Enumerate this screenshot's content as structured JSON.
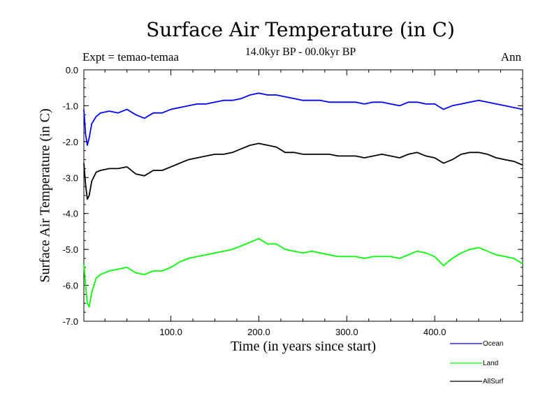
{
  "chart_data": {
    "type": "line",
    "title": "Surface Air Temperature (in C)",
    "subtitle": "14.0kyr BP - 00.0kyr BP",
    "experiment": "Expt = temao-temaa",
    "season": "Ann",
    "xlabel": "Time (in years since start)",
    "ylabel": "Surface Air Temperature (in C)",
    "xlim": [
      1,
      500
    ],
    "ylim": [
      -7.0,
      0.0
    ],
    "xticks": [
      100,
      200,
      300,
      400
    ],
    "xtick_labels": [
      "100.0",
      "200.0",
      "300.0",
      "400.0"
    ],
    "yticks": [
      0,
      -1,
      -2,
      -3,
      -4,
      -5,
      -6,
      -7
    ],
    "ytick_labels": [
      "0.0",
      "-1.0",
      "-2.0",
      "-3.0",
      "-4.0",
      "-5.0",
      "-6.0",
      "-7.0"
    ],
    "legend_position": "bottom-right, below plot",
    "series_x": [
      1,
      3,
      5,
      7,
      10,
      15,
      20,
      30,
      40,
      50,
      60,
      70,
      80,
      90,
      100,
      110,
      120,
      130,
      140,
      150,
      160,
      170,
      180,
      190,
      200,
      210,
      220,
      230,
      240,
      250,
      260,
      270,
      280,
      290,
      300,
      310,
      320,
      330,
      340,
      350,
      360,
      370,
      380,
      390,
      400,
      410,
      420,
      430,
      440,
      450,
      460,
      470,
      480,
      490,
      500
    ],
    "series": [
      {
        "name": "Ocean",
        "color": "#0000ff",
        "values": [
          -1.1,
          -1.8,
          -2.1,
          -1.9,
          -1.5,
          -1.3,
          -1.2,
          -1.15,
          -1.2,
          -1.1,
          -1.25,
          -1.35,
          -1.2,
          -1.2,
          -1.1,
          -1.05,
          -1.0,
          -0.95,
          -0.95,
          -0.9,
          -0.85,
          -0.85,
          -0.8,
          -0.7,
          -0.65,
          -0.7,
          -0.7,
          -0.75,
          -0.8,
          -0.85,
          -0.85,
          -0.85,
          -0.9,
          -0.9,
          -0.9,
          -0.9,
          -0.95,
          -0.9,
          -0.9,
          -0.95,
          -1.0,
          -0.9,
          -0.9,
          -0.95,
          -0.95,
          -1.1,
          -1.0,
          -0.95,
          -0.9,
          -0.85,
          -0.9,
          -0.95,
          -1.0,
          -1.05,
          -1.1
        ]
      },
      {
        "name": "Land",
        "color": "#00ff00",
        "values": [
          -5.4,
          -6.0,
          -6.5,
          -6.6,
          -6.2,
          -5.8,
          -5.7,
          -5.6,
          -5.55,
          -5.5,
          -5.65,
          -5.7,
          -5.6,
          -5.6,
          -5.5,
          -5.35,
          -5.25,
          -5.2,
          -5.15,
          -5.1,
          -5.05,
          -5.0,
          -4.9,
          -4.8,
          -4.7,
          -4.85,
          -4.85,
          -5.0,
          -5.05,
          -5.1,
          -5.05,
          -5.1,
          -5.15,
          -5.2,
          -5.2,
          -5.2,
          -5.25,
          -5.2,
          -5.2,
          -5.2,
          -5.25,
          -5.15,
          -5.05,
          -5.1,
          -5.2,
          -5.45,
          -5.25,
          -5.1,
          -5.0,
          -4.95,
          -5.05,
          -5.15,
          -5.2,
          -5.25,
          -5.4
        ]
      },
      {
        "name": "AllSurf",
        "color": "#000000",
        "values": [
          -2.6,
          -3.2,
          -3.6,
          -3.5,
          -3.1,
          -2.85,
          -2.8,
          -2.75,
          -2.75,
          -2.7,
          -2.9,
          -2.95,
          -2.8,
          -2.8,
          -2.7,
          -2.6,
          -2.5,
          -2.45,
          -2.4,
          -2.35,
          -2.35,
          -2.3,
          -2.2,
          -2.1,
          -2.05,
          -2.1,
          -2.15,
          -2.3,
          -2.3,
          -2.35,
          -2.35,
          -2.35,
          -2.35,
          -2.4,
          -2.4,
          -2.4,
          -2.45,
          -2.4,
          -2.35,
          -2.4,
          -2.45,
          -2.35,
          -2.3,
          -2.4,
          -2.45,
          -2.6,
          -2.5,
          -2.35,
          -2.3,
          -2.3,
          -2.35,
          -2.45,
          -2.5,
          -2.55,
          -2.65
        ]
      }
    ]
  }
}
